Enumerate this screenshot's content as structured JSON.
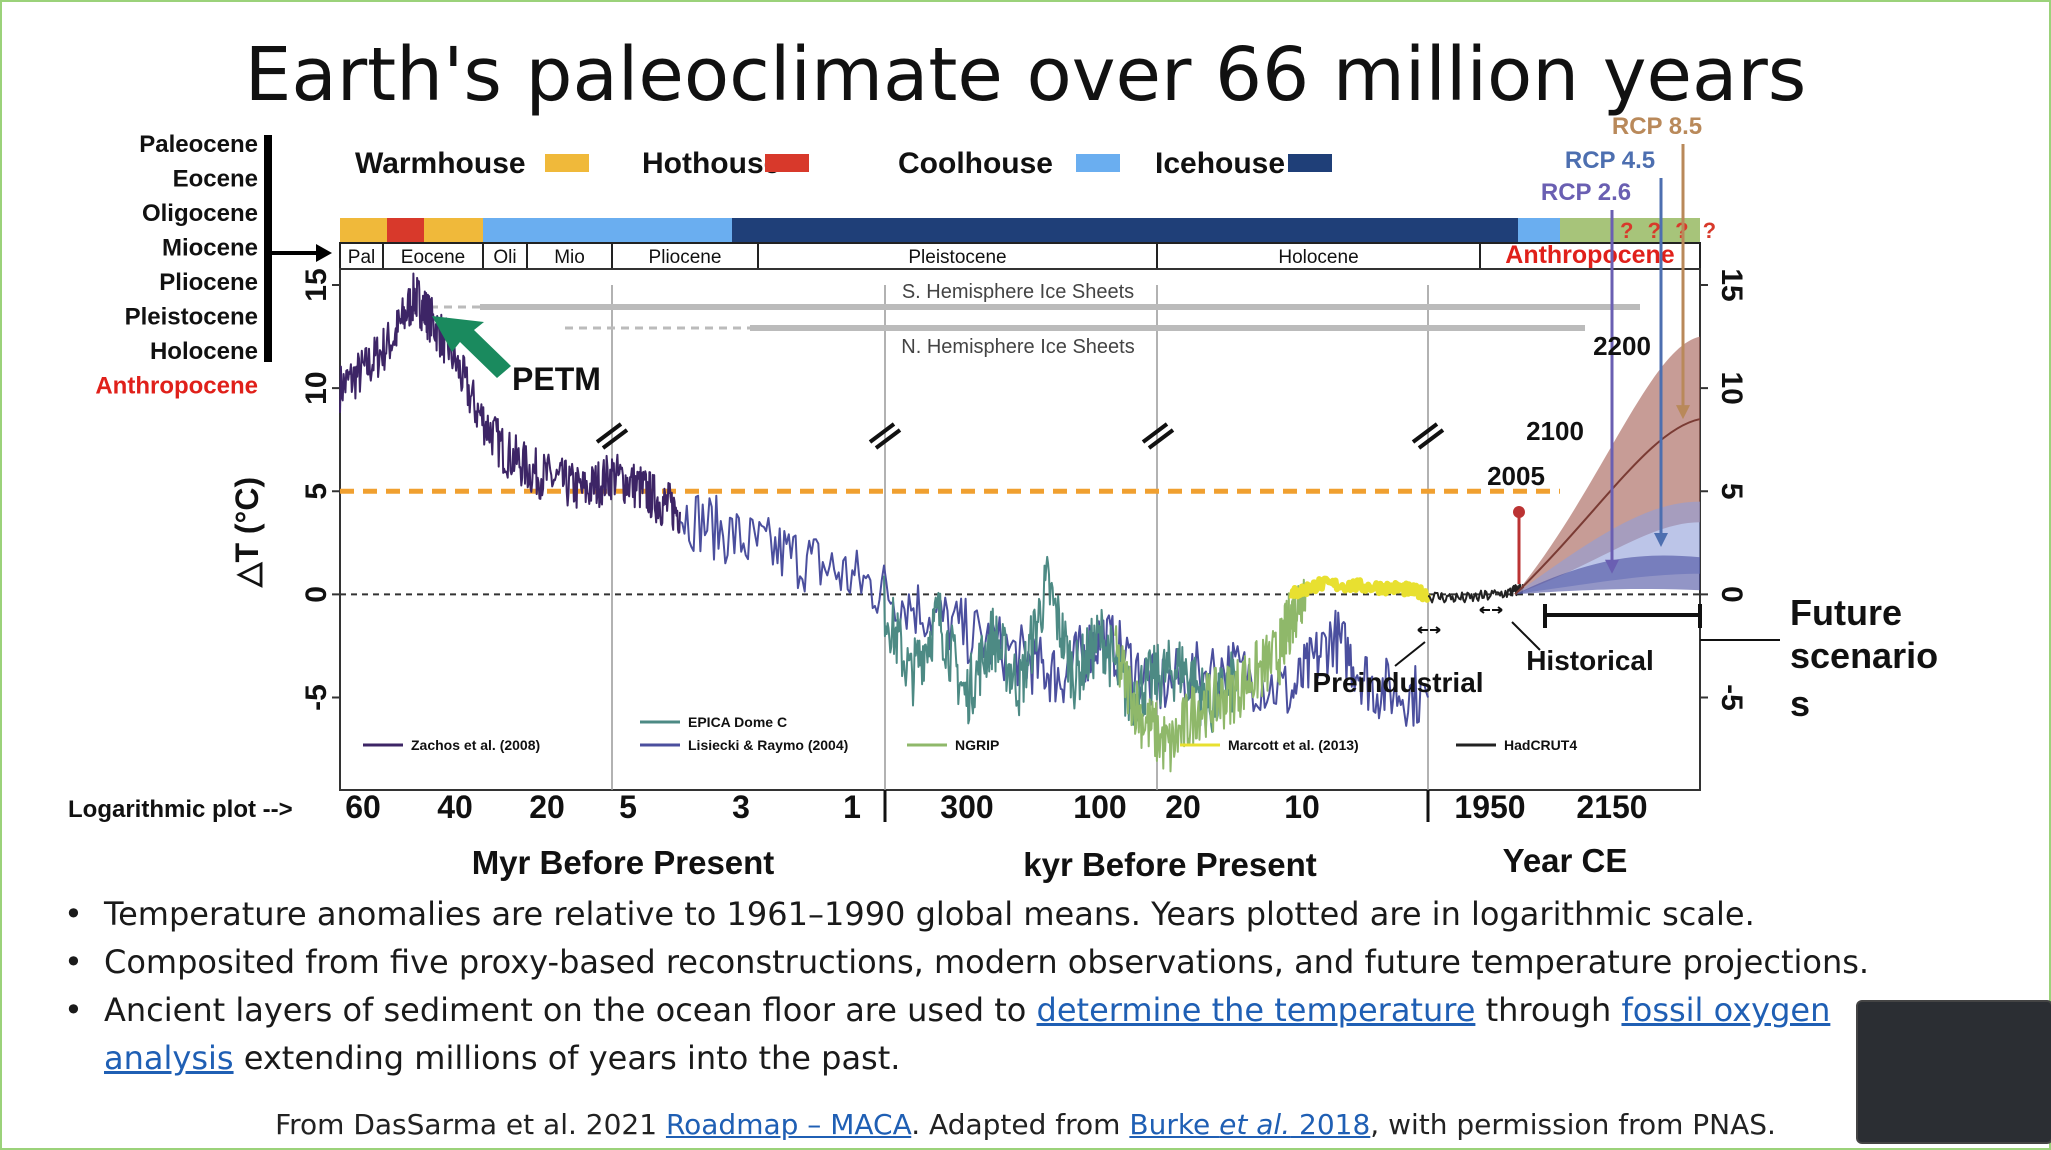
{
  "title": "Earth's paleoclimate over 66 million years",
  "epoch_list": [
    "Paleocene",
    "Eocene",
    "Oligocene",
    "Miocene",
    "Pliocene",
    "Pleistocene",
    "Holocene",
    "Anthropocene"
  ],
  "legend_climate": [
    {
      "label": "Warmhouse",
      "color": "#f0b93a"
    },
    {
      "label": "Hothouse",
      "color": "#d8392b"
    },
    {
      "label": "Coolhouse",
      "color": "#6aaef0"
    },
    {
      "label": "Icehouse",
      "color": "#1f3f78"
    }
  ],
  "colors": {
    "warmhouse": "#f0b93a",
    "hothouse": "#d8392b",
    "coolhouse": "#6aaef0",
    "icehouse": "#1f3f78",
    "anthropocene": "#e0201a",
    "petm_arrow": "#1a8a5e",
    "threshold": "#f0a030"
  },
  "epoch_bar": [
    "Pal",
    "Eocene",
    "Oli",
    "Mio",
    "Pliocene",
    "Pleistocene",
    "Holocene",
    "Anthropocene"
  ],
  "question_marks": "? ? ? ?",
  "ice_sheets": [
    "S. Hemisphere Ice Sheets",
    "N. Hemisphere Ice Sheets"
  ],
  "rcp": [
    "RCP 8.5",
    "RCP 4.5",
    "RCP 2.6"
  ],
  "annotations": {
    "petm": "PETM",
    "y2200": "2200",
    "y2100": "2100",
    "y2005": "2005",
    "preindustrial": "Preindustrial",
    "historical": "Historical",
    "future": "Future scenario s",
    "log_plot": "Logarithmic plot -->"
  },
  "dataset_legend": [
    "Zachos et al. (2008)",
    "EPICA Dome C",
    "Lisiecki & Raymo (2004)",
    "NGRIP",
    "Marcott et al. (2013)",
    "HadCRUT4"
  ],
  "chart_data": {
    "type": "line",
    "title": "Earth's paleoclimate over 66 million years",
    "ylabel": "△T (°C)",
    "ylim": [
      -9,
      15
    ],
    "yticks": [
      15,
      10,
      5,
      0,
      -5
    ],
    "reference_lines": {
      "zero": 0,
      "threshold": 5
    },
    "x_segments": [
      {
        "label": "Myr Before Present",
        "ticks": [
          "60",
          "40",
          "20",
          "5",
          "3",
          "1"
        ]
      },
      {
        "label": "kyr Before Present",
        "ticks": [
          "300",
          "100",
          "20",
          "10"
        ]
      },
      {
        "label": "Year CE",
        "ticks": [
          "1950",
          "2150"
        ]
      }
    ],
    "series": [
      {
        "name": "Zachos et al. (2008)",
        "color": "#3d2566",
        "points": [
          [
            0,
            10
          ],
          [
            0.02,
            11
          ],
          [
            0.04,
            12.5
          ],
          [
            0.055,
            14.5
          ],
          [
            0.065,
            13.5
          ],
          [
            0.08,
            12
          ],
          [
            0.1,
            9
          ],
          [
            0.12,
            7
          ],
          [
            0.14,
            6
          ],
          [
            0.16,
            5.5
          ],
          [
            0.18,
            5
          ],
          [
            0.2,
            5.8
          ],
          [
            0.22,
            5.2
          ],
          [
            0.235,
            4.5
          ],
          [
            0.25,
            4
          ]
        ]
      },
      {
        "name": "Lisiecki & Raymo (2004)",
        "color": "#4b4f9e",
        "points": [
          [
            0.25,
            4
          ],
          [
            0.3,
            2.5
          ],
          [
            0.35,
            1.5
          ],
          [
            0.4,
            0.2
          ],
          [
            0.45,
            -1.5
          ],
          [
            0.5,
            -3
          ],
          [
            0.53,
            -4
          ],
          [
            0.56,
            -2
          ],
          [
            0.6,
            -4.5
          ],
          [
            0.65,
            -3.5
          ],
          [
            0.7,
            -4.8
          ],
          [
            0.73,
            -2
          ],
          [
            0.76,
            -4.5
          ],
          [
            0.8,
            -5
          ]
        ]
      },
      {
        "name": "EPICA Dome C",
        "color": "#4d8a84",
        "points": [
          [
            0.4,
            -0.5
          ],
          [
            0.42,
            -4
          ],
          [
            0.44,
            -1
          ],
          [
            0.46,
            -5
          ],
          [
            0.48,
            -2
          ],
          [
            0.5,
            -4.5
          ],
          [
            0.52,
            0.5
          ],
          [
            0.54,
            -4
          ],
          [
            0.56,
            -2
          ],
          [
            0.58,
            -5
          ],
          [
            0.6,
            -4
          ],
          [
            0.62,
            -3.5
          ],
          [
            0.64,
            -5.5
          ],
          [
            0.66,
            -4
          ]
        ]
      },
      {
        "name": "NGRIP",
        "color": "#8fb86a",
        "points": [
          [
            0.57,
            -3
          ],
          [
            0.59,
            -6
          ],
          [
            0.61,
            -7.5
          ],
          [
            0.63,
            -5.5
          ],
          [
            0.65,
            -5
          ],
          [
            0.67,
            -4
          ],
          [
            0.69,
            -3
          ],
          [
            0.7,
            -1
          ],
          [
            0.71,
            0.5
          ]
        ]
      },
      {
        "name": "Marcott et al. (2013)",
        "color": "#e8e030",
        "points": [
          [
            0.7,
            0
          ],
          [
            0.72,
            0.5
          ],
          [
            0.75,
            0.4
          ],
          [
            0.78,
            0.3
          ],
          [
            0.8,
            0
          ]
        ]
      },
      {
        "name": "HadCRUT4",
        "color": "#222222",
        "points": [
          [
            0.8,
            -0.1
          ],
          [
            0.83,
            -0.2
          ],
          [
            0.86,
            0.1
          ],
          [
            0.87,
            0.3
          ]
        ]
      }
    ],
    "projections": [
      {
        "name": "RCP 8.5",
        "year_2200": 12.5,
        "median": 8.5
      },
      {
        "name": "RCP 4.5",
        "year_2200": 4,
        "median": 2.5
      },
      {
        "name": "RCP 2.6",
        "year_2200": 1.5,
        "median": 0.8
      }
    ]
  },
  "bullets": [
    {
      "parts": [
        {
          "text": "Temperature anomalies are relative to 1961–1990 global means. Years plotted are in logarithmic scale."
        }
      ]
    },
    {
      "parts": [
        {
          "text": "Composited from five proxy-based reconstructions, modern observations, and future temperature projections."
        }
      ]
    },
    {
      "parts": [
        {
          "text": "Ancient layers of sediment on the ocean floor are used to "
        },
        {
          "text": "determine the temperature",
          "link": true
        },
        {
          "text": " through "
        },
        {
          "text": "fossil oxygen",
          "link": true
        },
        {
          "text": " "
        },
        {
          "text": "analysis",
          "link": true
        },
        {
          "text": " extending millions of years into the past."
        }
      ]
    }
  ],
  "credit": {
    "pre": "From DasSarma et al. 2021 ",
    "link1": "Roadmap – MACA",
    "mid": ". Adapted from ",
    "link2a": "Burke ",
    "link2b": "et al.",
    "link2c": " 2018",
    "post": ", with permission from PNAS."
  }
}
